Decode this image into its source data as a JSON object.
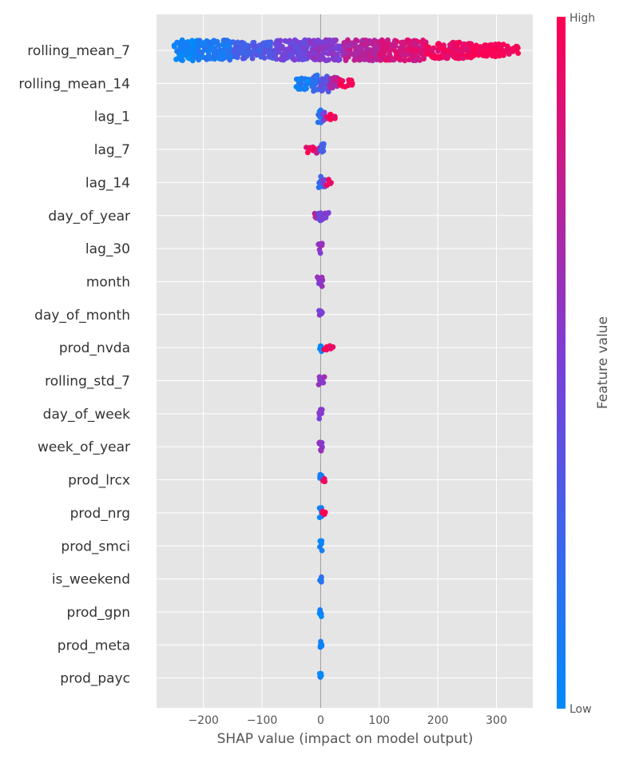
{
  "chart_data": {
    "type": "scatter",
    "subtype": "shap-beeswarm",
    "title": "",
    "xlabel": "SHAP value (impact on model output)",
    "xlim": [
      -280,
      362
    ],
    "xticks": [
      -200,
      -100,
      0,
      100,
      200,
      300
    ],
    "xtick_labels": [
      "−200",
      "−100",
      "0",
      "100",
      "200",
      "300"
    ],
    "grid": true,
    "background": "#e5e5e5",
    "colorbar": {
      "label": "Feature value",
      "high_label": "High",
      "low_label": "Low",
      "colors": [
        "#008bfb",
        "#7b3fd8",
        "#ff0051"
      ]
    },
    "features": [
      {
        "name": "rolling_mean_7",
        "segments": [
          [
            -250,
            -210,
            0.03,
            5
          ],
          [
            -210,
            -150,
            0.12,
            5
          ],
          [
            -150,
            -80,
            0.3,
            4
          ],
          [
            -80,
            -20,
            0.45,
            5
          ],
          [
            -20,
            40,
            0.55,
            5
          ],
          [
            40,
            100,
            0.72,
            5
          ],
          [
            100,
            180,
            0.84,
            5
          ],
          [
            180,
            260,
            0.93,
            4
          ],
          [
            260,
            320,
            1.0,
            3
          ],
          [
            320,
            338,
            1.0,
            2
          ]
        ]
      },
      {
        "name": "rolling_mean_14",
        "segments": [
          [
            -42,
            -15,
            0.08,
            3
          ],
          [
            -15,
            0,
            0.2,
            4
          ],
          [
            0,
            15,
            0.35,
            4
          ],
          [
            15,
            30,
            0.7,
            3
          ],
          [
            30,
            55,
            0.95,
            2
          ]
        ]
      },
      {
        "name": "lag_1",
        "segments": [
          [
            -5,
            2,
            0.15,
            3
          ],
          [
            2,
            8,
            0.5,
            2
          ],
          [
            8,
            25,
            0.95,
            1.5
          ]
        ]
      },
      {
        "name": "lag_7",
        "segments": [
          [
            -26,
            -8,
            0.95,
            1.5
          ],
          [
            -8,
            0,
            0.7,
            2
          ],
          [
            0,
            6,
            0.25,
            3
          ]
        ]
      },
      {
        "name": "lag_14",
        "segments": [
          [
            -4,
            3,
            0.2,
            3
          ],
          [
            3,
            8,
            0.5,
            2
          ],
          [
            8,
            18,
            0.95,
            1.5
          ]
        ]
      },
      {
        "name": "day_of_year",
        "segments": [
          [
            -12,
            -4,
            0.7,
            1.5
          ],
          [
            -4,
            4,
            0.45,
            2.5
          ],
          [
            4,
            14,
            0.5,
            1.5
          ]
        ]
      },
      {
        "name": "lag_30",
        "segments": [
          [
            -4,
            4,
            0.6,
            2.5
          ]
        ]
      },
      {
        "name": "month",
        "segments": [
          [
            -6,
            4,
            0.55,
            2.5
          ]
        ]
      },
      {
        "name": "day_of_month",
        "segments": [
          [
            -3,
            3,
            0.5,
            2.5
          ]
        ]
      },
      {
        "name": "prod_nvda",
        "segments": [
          [
            -2,
            3,
            0.05,
            2.5
          ],
          [
            5,
            22,
            0.98,
            1.3
          ]
        ]
      },
      {
        "name": "rolling_std_7",
        "segments": [
          [
            -4,
            7,
            0.6,
            2.5
          ]
        ]
      },
      {
        "name": "day_of_week",
        "segments": [
          [
            -3,
            3,
            0.55,
            2.5
          ]
        ]
      },
      {
        "name": "week_of_year",
        "segments": [
          [
            -3,
            5,
            0.55,
            2.5
          ]
        ]
      },
      {
        "name": "prod_lrcx",
        "segments": [
          [
            -2,
            2,
            0.05,
            2.5
          ],
          [
            3,
            8,
            0.98,
            0.8
          ]
        ]
      },
      {
        "name": "prod_nrg",
        "segments": [
          [
            -2,
            2,
            0.05,
            2.5
          ],
          [
            3,
            8,
            0.98,
            0.8
          ]
        ]
      },
      {
        "name": "prod_smci",
        "segments": [
          [
            -2,
            3,
            0.05,
            2.5
          ]
        ]
      },
      {
        "name": "is_weekend",
        "segments": [
          [
            -3,
            3,
            0.15,
            2.5
          ]
        ]
      },
      {
        "name": "prod_gpn",
        "segments": [
          [
            -2,
            2,
            0.05,
            2.5
          ]
        ]
      },
      {
        "name": "prod_meta",
        "segments": [
          [
            -2,
            2,
            0.05,
            2.5
          ]
        ]
      },
      {
        "name": "prod_payc",
        "segments": [
          [
            -2,
            2,
            0.05,
            2.5
          ]
        ]
      }
    ]
  }
}
